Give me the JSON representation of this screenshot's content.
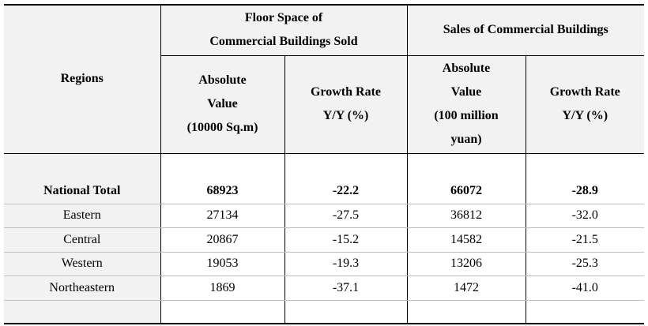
{
  "header": {
    "regions": "Regions",
    "group1": {
      "line1": "Floor Space of",
      "line2": "Commercial Buildings Sold"
    },
    "group2": "Sales of Commercial Buildings",
    "sub": [
      {
        "lines": [
          "Absolute",
          "Value",
          "(10000 Sq.m)"
        ]
      },
      {
        "lines": [
          "Growth Rate",
          "Y/Y (%)"
        ]
      },
      {
        "lines": [
          "Absolute",
          "Value",
          "(100 million",
          "yuan)"
        ]
      },
      {
        "lines": [
          "Growth Rate",
          "Y/Y (%)"
        ]
      }
    ]
  },
  "rows": [
    {
      "region": "National Total",
      "floor_value": "68923",
      "floor_growth": "-22.2",
      "sales_value": "66072",
      "sales_growth": "-28.9"
    },
    {
      "region": "Eastern",
      "floor_value": "27134",
      "floor_growth": "-27.5",
      "sales_value": "36812",
      "sales_growth": "-32.0"
    },
    {
      "region": "Central",
      "floor_value": "20867",
      "floor_growth": "-15.2",
      "sales_value": "14582",
      "sales_growth": "-21.5"
    },
    {
      "region": "Western",
      "floor_value": "19053",
      "floor_growth": "-19.3",
      "sales_value": "13206",
      "sales_growth": "-25.3"
    },
    {
      "region": "Northeastern",
      "floor_value": "1869",
      "floor_growth": "-37.1",
      "sales_value": "1472",
      "sales_growth": "-41.0"
    }
  ]
}
